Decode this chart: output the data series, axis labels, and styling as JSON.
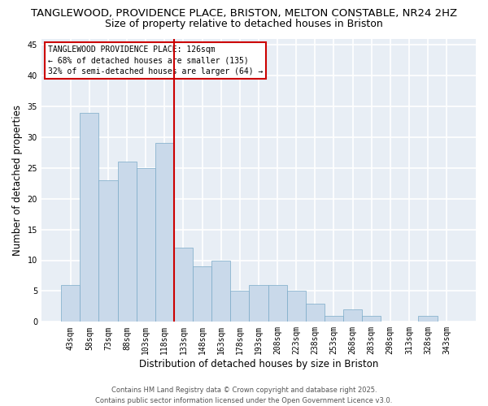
{
  "title_line1": "TANGLEWOOD, PROVIDENCE PLACE, BRISTON, MELTON CONSTABLE, NR24 2HZ",
  "title_line2": "Size of property relative to detached houses in Briston",
  "xlabel": "Distribution of detached houses by size in Briston",
  "ylabel": "Number of detached properties",
  "categories": [
    "43sqm",
    "58sqm",
    "73sqm",
    "88sqm",
    "103sqm",
    "118sqm",
    "133sqm",
    "148sqm",
    "163sqm",
    "178sqm",
    "193sqm",
    "208sqm",
    "223sqm",
    "238sqm",
    "253sqm",
    "268sqm",
    "283sqm",
    "298sqm",
    "313sqm",
    "328sqm",
    "343sqm"
  ],
  "values": [
    6,
    34,
    23,
    26,
    25,
    29,
    12,
    9,
    10,
    5,
    6,
    6,
    5,
    3,
    1,
    2,
    1,
    0,
    0,
    1,
    0
  ],
  "bar_color": "#c9d9ea",
  "bar_edge_color": "#7aaac8",
  "vline_x": 5.5,
  "vline_color": "#cc0000",
  "annotation_title": "TANGLEWOOD PROVIDENCE PLACE: 126sqm",
  "annotation_line2": "← 68% of detached houses are smaller (135)",
  "annotation_line3": "32% of semi-detached houses are larger (64) →",
  "annotation_box_facecolor": "#ffffff",
  "annotation_box_edgecolor": "#cc0000",
  "ylim": [
    0,
    46
  ],
  "yticks": [
    0,
    5,
    10,
    15,
    20,
    25,
    30,
    35,
    40,
    45
  ],
  "plot_bg_color": "#e8eef5",
  "fig_bg_color": "#ffffff",
  "grid_color": "#ffffff",
  "footer_line1": "Contains HM Land Registry data © Crown copyright and database right 2025.",
  "footer_line2": "Contains public sector information licensed under the Open Government Licence v3.0.",
  "title_fontsize": 9.5,
  "subtitle_fontsize": 9,
  "axis_label_fontsize": 8.5,
  "tick_fontsize": 7,
  "annotation_fontsize": 7,
  "footer_fontsize": 6
}
